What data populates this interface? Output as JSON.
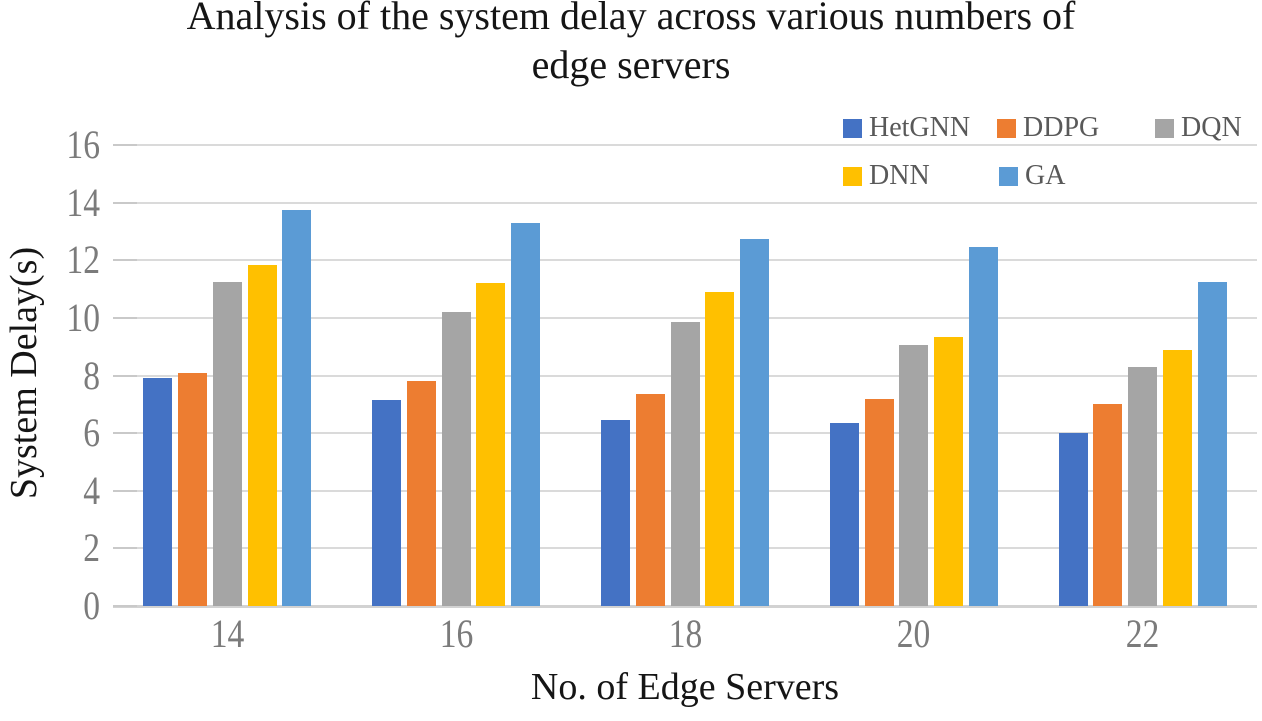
{
  "figure": {
    "title_line1": "Analysis of the system delay across various numbers of",
    "title_line2": "edge servers"
  },
  "chart_data": {
    "type": "bar",
    "title": "Analysis of the system delay across various numbers of edge servers",
    "xlabel": "No. of Edge Servers",
    "ylabel": "System Delay(s)",
    "categories": [
      "14",
      "16",
      "18",
      "20",
      "22"
    ],
    "series": [
      {
        "name": "HetGNN",
        "color": "#4472C4",
        "values": [
          7.9,
          7.15,
          6.45,
          6.35,
          6.0
        ]
      },
      {
        "name": "DDPG",
        "color": "#ED7D31",
        "values": [
          8.1,
          7.8,
          7.35,
          7.2,
          7.0
        ]
      },
      {
        "name": "DQN",
        "color": "#A5A5A5",
        "values": [
          11.25,
          10.2,
          9.85,
          9.05,
          8.3
        ]
      },
      {
        "name": "DNN",
        "color": "#FFC000",
        "values": [
          11.85,
          11.2,
          10.9,
          9.35,
          8.9
        ]
      },
      {
        "name": "GA",
        "color": "#5B9BD5",
        "values": [
          13.75,
          13.3,
          12.75,
          12.45,
          11.25
        ]
      }
    ],
    "ylim": [
      0,
      16
    ],
    "ytick_step": 2,
    "yticks": [
      "0",
      "2",
      "4",
      "6",
      "8",
      "10",
      "12",
      "14",
      "16"
    ],
    "grid": true,
    "legend_position": "top-right-inside",
    "legend_rows": [
      [
        "HetGNN",
        "DDPG",
        "DQN"
      ],
      [
        "DNN",
        "GA"
      ]
    ]
  },
  "style": {
    "grid_color": "#DADADA",
    "axis_line_color": "#D2D2D2",
    "tick_label_color": "#7B7B7B",
    "legend_text_color": "#595959",
    "title_color": "#151515"
  }
}
